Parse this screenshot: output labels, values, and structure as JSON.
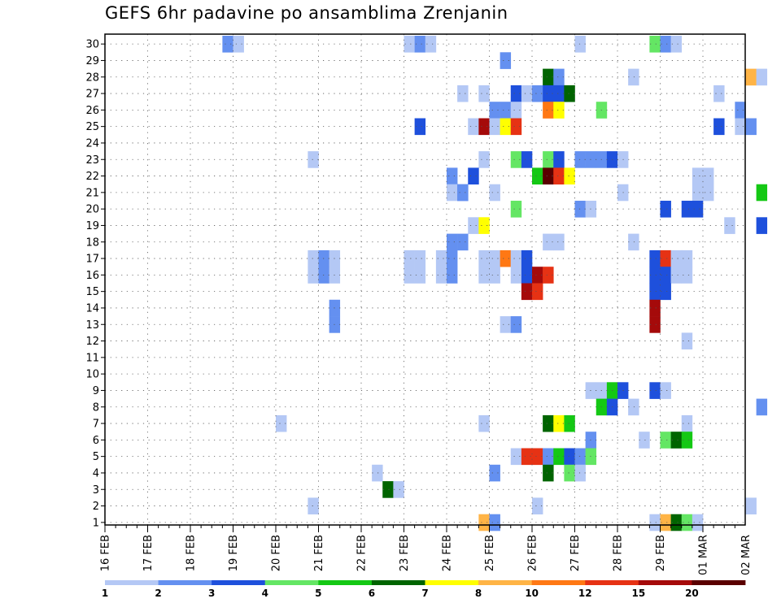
{
  "chart_data": {
    "type": "heatmap",
    "title": "GEFS 6hr padavine po ansamblima Zrenjanin",
    "x_tick_labels": [
      "16 FEB",
      "17 FEB",
      "18 FEB",
      "19 FEB",
      "20 FEB",
      "21 FEB",
      "22 FEB",
      "23 FEB",
      "24 FEB",
      "25 FEB",
      "26 FEB",
      "27 FEB",
      "28 FEB",
      "29 FEB",
      "01 MAR",
      "02 MAR"
    ],
    "x_unit": "6-hour step (4 per day), step 0 = 16 FEB 00Z",
    "y_tick_labels": [
      "1",
      "2",
      "3",
      "4",
      "5",
      "6",
      "7",
      "8",
      "9",
      "10",
      "11",
      "12",
      "13",
      "14",
      "15",
      "16",
      "17",
      "18",
      "19",
      "20",
      "21",
      "22",
      "23",
      "24",
      "25",
      "26",
      "27",
      "28",
      "29",
      "30"
    ],
    "ylabel": "",
    "xlabel": "",
    "grid": true,
    "colorbar": {
      "labels": [
        "1",
        "2",
        "3",
        "4",
        "5",
        "6",
        "7",
        "8",
        "10",
        "12",
        "15",
        "20"
      ],
      "colors": [
        "#b4c8f5",
        "#6490f0",
        "#1e50dc",
        "#64e664",
        "#14c814",
        "#006400",
        "#ffff00",
        "#ffb446",
        "#ff7814",
        "#e63214",
        "#a50a0a",
        "#5a0000"
      ]
    },
    "bins": [
      "1-2",
      "2-3",
      "3-4",
      "4-5",
      "5-6",
      "6-7",
      "7-8",
      "8-10",
      "10-12",
      "12-15",
      "15-20",
      "20+"
    ],
    "cells": [
      {
        "m": 30,
        "s": 11,
        "b": 1
      },
      {
        "m": 30,
        "s": 12,
        "b": 0
      },
      {
        "m": 30,
        "s": 28,
        "b": 0
      },
      {
        "m": 30,
        "s": 29,
        "b": 1
      },
      {
        "m": 30,
        "s": 30,
        "b": 0
      },
      {
        "m": 30,
        "s": 44,
        "b": 0
      },
      {
        "m": 30,
        "s": 51,
        "b": 3
      },
      {
        "m": 30,
        "s": 52,
        "b": 1
      },
      {
        "m": 30,
        "s": 53,
        "b": 0
      },
      {
        "m": 29,
        "s": 37,
        "b": 1
      },
      {
        "m": 28,
        "s": 41,
        "b": 5
      },
      {
        "m": 28,
        "s": 42,
        "b": 1
      },
      {
        "m": 28,
        "s": 49,
        "b": 0
      },
      {
        "m": 28,
        "s": 60,
        "b": 7
      },
      {
        "m": 28,
        "s": 61,
        "b": 0
      },
      {
        "m": 27,
        "s": 33,
        "b": 0
      },
      {
        "m": 27,
        "s": 35,
        "b": 0
      },
      {
        "m": 27,
        "s": 38,
        "b": 2
      },
      {
        "m": 27,
        "s": 39,
        "b": 0
      },
      {
        "m": 27,
        "s": 40,
        "b": 1
      },
      {
        "m": 27,
        "s": 41,
        "b": 2
      },
      {
        "m": 27,
        "s": 42,
        "b": 2
      },
      {
        "m": 27,
        "s": 43,
        "b": 5
      },
      {
        "m": 27,
        "s": 57,
        "b": 0
      },
      {
        "m": 26,
        "s": 36,
        "b": 1
      },
      {
        "m": 26,
        "s": 37,
        "b": 1
      },
      {
        "m": 26,
        "s": 38,
        "b": 0
      },
      {
        "m": 26,
        "s": 41,
        "b": 8
      },
      {
        "m": 26,
        "s": 42,
        "b": 6
      },
      {
        "m": 26,
        "s": 46,
        "b": 3
      },
      {
        "m": 26,
        "s": 59,
        "b": 1
      },
      {
        "m": 25,
        "s": 29,
        "b": 2
      },
      {
        "m": 25,
        "s": 34,
        "b": 0
      },
      {
        "m": 25,
        "s": 35,
        "b": 10
      },
      {
        "m": 25,
        "s": 36,
        "b": 0
      },
      {
        "m": 25,
        "s": 37,
        "b": 6
      },
      {
        "m": 25,
        "s": 38,
        "b": 9
      },
      {
        "m": 25,
        "s": 57,
        "b": 2
      },
      {
        "m": 25,
        "s": 59,
        "b": 0
      },
      {
        "m": 25,
        "s": 60,
        "b": 1
      },
      {
        "m": 23,
        "s": 19,
        "b": 0
      },
      {
        "m": 23,
        "s": 35,
        "b": 0
      },
      {
        "m": 23,
        "s": 38,
        "b": 3
      },
      {
        "m": 23,
        "s": 39,
        "b": 2
      },
      {
        "m": 23,
        "s": 41,
        "b": 3
      },
      {
        "m": 23,
        "s": 42,
        "b": 2
      },
      {
        "m": 23,
        "s": 44,
        "b": 1
      },
      {
        "m": 23,
        "s": 45,
        "b": 1
      },
      {
        "m": 23,
        "s": 46,
        "b": 1
      },
      {
        "m": 23,
        "s": 47,
        "b": 2
      },
      {
        "m": 23,
        "s": 48,
        "b": 0
      },
      {
        "m": 22,
        "s": 32,
        "b": 1
      },
      {
        "m": 22,
        "s": 34,
        "b": 2
      },
      {
        "m": 22,
        "s": 40,
        "b": 4
      },
      {
        "m": 22,
        "s": 41,
        "b": 11
      },
      {
        "m": 22,
        "s": 42,
        "b": 9
      },
      {
        "m": 22,
        "s": 43,
        "b": 6
      },
      {
        "m": 22,
        "s": 55,
        "b": 0
      },
      {
        "m": 22,
        "s": 56,
        "b": 0
      },
      {
        "m": 21,
        "s": 32,
        "b": 0
      },
      {
        "m": 21,
        "s": 33,
        "b": 1
      },
      {
        "m": 21,
        "s": 55,
        "b": 0
      },
      {
        "m": 21,
        "s": 56,
        "b": 0
      },
      {
        "m": 21,
        "s": 33,
        "b": 1
      },
      {
        "m": 21,
        "s": 36,
        "b": 0
      },
      {
        "m": 21,
        "s": 48,
        "b": 0
      },
      {
        "m": 21,
        "s": 61,
        "b": 4
      },
      {
        "m": 20,
        "s": 38,
        "b": 3
      },
      {
        "m": 20,
        "s": 44,
        "b": 1
      },
      {
        "m": 20,
        "s": 45,
        "b": 0
      },
      {
        "m": 20,
        "s": 52,
        "b": 2
      },
      {
        "m": 20,
        "s": 54,
        "b": 2
      },
      {
        "m": 20,
        "s": 55,
        "b": 2
      },
      {
        "m": 19,
        "s": 34,
        "b": 0
      },
      {
        "m": 19,
        "s": 35,
        "b": 6
      },
      {
        "m": 19,
        "s": 58,
        "b": 0
      },
      {
        "m": 19,
        "s": 61,
        "b": 2
      },
      {
        "m": 18,
        "s": 32,
        "b": 1
      },
      {
        "m": 18,
        "s": 33,
        "b": 1
      },
      {
        "m": 18,
        "s": 41,
        "b": 0
      },
      {
        "m": 18,
        "s": 42,
        "b": 0
      },
      {
        "m": 18,
        "s": 49,
        "b": 0
      },
      {
        "m": 17,
        "s": 19,
        "b": 0
      },
      {
        "m": 17,
        "s": 20,
        "b": 1
      },
      {
        "m": 17,
        "s": 21,
        "b": 0
      },
      {
        "m": 17,
        "s": 28,
        "b": 0
      },
      {
        "m": 17,
        "s": 29,
        "b": 0
      },
      {
        "m": 17,
        "s": 31,
        "b": 0
      },
      {
        "m": 17,
        "s": 32,
        "b": 1
      },
      {
        "m": 17,
        "s": 35,
        "b": 0
      },
      {
        "m": 17,
        "s": 36,
        "b": 0
      },
      {
        "m": 17,
        "s": 37,
        "b": 8
      },
      {
        "m": 17,
        "s": 38,
        "b": 0
      },
      {
        "m": 17,
        "s": 39,
        "b": 2
      },
      {
        "m": 17,
        "s": 51,
        "b": 2
      },
      {
        "m": 17,
        "s": 52,
        "b": 9
      },
      {
        "m": 17,
        "s": 53,
        "b": 0
      },
      {
        "m": 17,
        "s": 54,
        "b": 0
      },
      {
        "m": 16,
        "s": 19,
        "b": 0
      },
      {
        "m": 16,
        "s": 20,
        "b": 1
      },
      {
        "m": 16,
        "s": 21,
        "b": 0
      },
      {
        "m": 16,
        "s": 28,
        "b": 0
      },
      {
        "m": 16,
        "s": 29,
        "b": 0
      },
      {
        "m": 16,
        "s": 31,
        "b": 0
      },
      {
        "m": 16,
        "s": 32,
        "b": 1
      },
      {
        "m": 16,
        "s": 35,
        "b": 0
      },
      {
        "m": 16,
        "s": 36,
        "b": 0
      },
      {
        "m": 16,
        "s": 38,
        "b": 0
      },
      {
        "m": 16,
        "s": 39,
        "b": 2
      },
      {
        "m": 16,
        "s": 40,
        "b": 10
      },
      {
        "m": 16,
        "s": 41,
        "b": 9
      },
      {
        "m": 16,
        "s": 51,
        "b": 2
      },
      {
        "m": 16,
        "s": 52,
        "b": 2
      },
      {
        "m": 16,
        "s": 53,
        "b": 0
      },
      {
        "m": 16,
        "s": 54,
        "b": 0
      },
      {
        "m": 15,
        "s": 39,
        "b": 10
      },
      {
        "m": 15,
        "s": 40,
        "b": 9
      },
      {
        "m": 15,
        "s": 51,
        "b": 2
      },
      {
        "m": 15,
        "s": 52,
        "b": 2
      },
      {
        "m": 14,
        "s": 21,
        "b": 1
      },
      {
        "m": 14,
        "s": 51,
        "b": 10
      },
      {
        "m": 13,
        "s": 21,
        "b": 1
      },
      {
        "m": 13,
        "s": 37,
        "b": 0
      },
      {
        "m": 13,
        "s": 38,
        "b": 1
      },
      {
        "m": 13,
        "s": 51,
        "b": 10
      },
      {
        "m": 12,
        "s": 54,
        "b": 0
      },
      {
        "m": 9,
        "s": 45,
        "b": 0
      },
      {
        "m": 9,
        "s": 46,
        "b": 0
      },
      {
        "m": 9,
        "s": 47,
        "b": 4
      },
      {
        "m": 9,
        "s": 48,
        "b": 2
      },
      {
        "m": 9,
        "s": 51,
        "b": 2
      },
      {
        "m": 9,
        "s": 52,
        "b": 0
      },
      {
        "m": 8,
        "s": 46,
        "b": 4
      },
      {
        "m": 8,
        "s": 47,
        "b": 2
      },
      {
        "m": 8,
        "s": 49,
        "b": 0
      },
      {
        "m": 8,
        "s": 61,
        "b": 1
      },
      {
        "m": 7,
        "s": 16,
        "b": 0
      },
      {
        "m": 7,
        "s": 35,
        "b": 0
      },
      {
        "m": 7,
        "s": 41,
        "b": 5
      },
      {
        "m": 7,
        "s": 42,
        "b": 6
      },
      {
        "m": 7,
        "s": 43,
        "b": 4
      },
      {
        "m": 7,
        "s": 54,
        "b": 0
      },
      {
        "m": 6,
        "s": 45,
        "b": 1
      },
      {
        "m": 6,
        "s": 50,
        "b": 0
      },
      {
        "m": 6,
        "s": 52,
        "b": 3
      },
      {
        "m": 6,
        "s": 53,
        "b": 5
      },
      {
        "m": 6,
        "s": 54,
        "b": 4
      },
      {
        "m": 5,
        "s": 38,
        "b": 0
      },
      {
        "m": 5,
        "s": 39,
        "b": 9
      },
      {
        "m": 5,
        "s": 40,
        "b": 9
      },
      {
        "m": 5,
        "s": 41,
        "b": 1
      },
      {
        "m": 5,
        "s": 42,
        "b": 4
      },
      {
        "m": 5,
        "s": 43,
        "b": 2
      },
      {
        "m": 5,
        "s": 44,
        "b": 1
      },
      {
        "m": 5,
        "s": 45,
        "b": 3
      },
      {
        "m": 4,
        "s": 25,
        "b": 0
      },
      {
        "m": 4,
        "s": 36,
        "b": 1
      },
      {
        "m": 4,
        "s": 41,
        "b": 5
      },
      {
        "m": 4,
        "s": 43,
        "b": 3
      },
      {
        "m": 4,
        "s": 44,
        "b": 0
      },
      {
        "m": 3,
        "s": 26,
        "b": 5
      },
      {
        "m": 3,
        "s": 27,
        "b": 0
      },
      {
        "m": 2,
        "s": 19,
        "b": 0
      },
      {
        "m": 2,
        "s": 40,
        "b": 0
      },
      {
        "m": 2,
        "s": 60,
        "b": 0
      },
      {
        "m": 1,
        "s": 35,
        "b": 7
      },
      {
        "m": 1,
        "s": 36,
        "b": 1
      },
      {
        "m": 1,
        "s": 51,
        "b": 0
      },
      {
        "m": 1,
        "s": 52,
        "b": 7
      },
      {
        "m": 1,
        "s": 53,
        "b": 5
      },
      {
        "m": 1,
        "s": 54,
        "b": 3
      },
      {
        "m": 1,
        "s": 55,
        "b": 0
      }
    ]
  }
}
